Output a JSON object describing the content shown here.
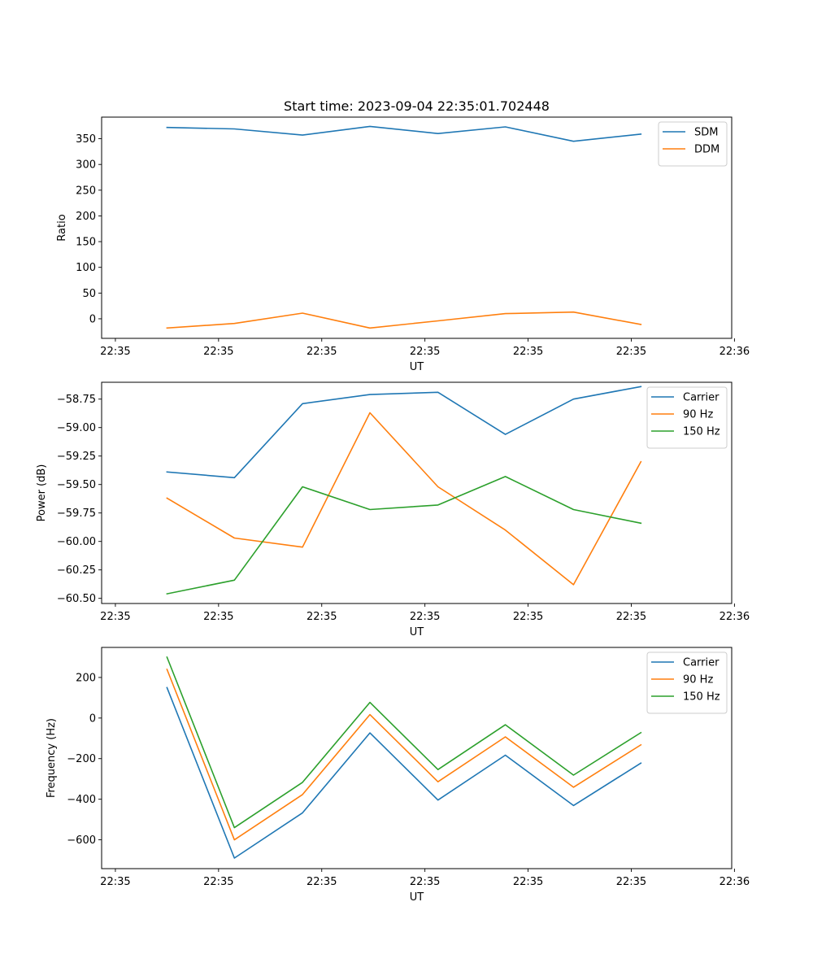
{
  "chart_data": [
    {
      "type": "line",
      "title": "Start time: 2023-09-04 22:35:01.702448",
      "xlabel": "UT",
      "ylabel": "Ratio",
      "xlim": [
        -0.2,
        8.96
      ],
      "ylim": [
        -38,
        392
      ],
      "xticks": [
        0,
        1.5,
        3,
        4.5,
        6,
        7.5,
        9
      ],
      "xtick_labels": [
        "22:35",
        "22:35",
        "22:35",
        "22:35",
        "22:35",
        "22:35",
        "22:36"
      ],
      "yticks": [
        0,
        50,
        100,
        150,
        200,
        250,
        300,
        350
      ],
      "ytick_labels": [
        "0",
        "50",
        "100",
        "150",
        "200",
        "250",
        "300",
        "350"
      ],
      "legend_position": "top-right",
      "x": [
        0.75,
        1.73,
        2.72,
        3.7,
        4.69,
        5.67,
        6.66,
        7.64
      ],
      "series": [
        {
          "name": "SDM",
          "color": "#1f77b4",
          "values": [
            372,
            369,
            357,
            374,
            360,
            373,
            345,
            359
          ]
        },
        {
          "name": "DDM",
          "color": "#ff7f0e",
          "values": [
            -18,
            -9,
            11,
            -18,
            -4,
            10,
            13,
            -11
          ]
        }
      ]
    },
    {
      "type": "line",
      "title": "",
      "xlabel": "UT",
      "ylabel": "Power (dB)",
      "xlim": [
        -0.2,
        8.96
      ],
      "ylim": [
        -60.545,
        -58.602
      ],
      "xticks": [
        0,
        1.5,
        3,
        4.5,
        6,
        7.5,
        9
      ],
      "xtick_labels": [
        "22:35",
        "22:35",
        "22:35",
        "22:35",
        "22:35",
        "22:35",
        "22:36"
      ],
      "yticks": [
        -60.5,
        -60.25,
        -60.0,
        -59.75,
        -59.5,
        -59.25,
        -59.0,
        -58.75
      ],
      "ytick_labels": [
        "−60.50",
        "−60.25",
        "−60.00",
        "−59.75",
        "−59.50",
        "−59.25",
        "−59.00",
        "−58.75"
      ],
      "legend_position": "top-right",
      "x": [
        0.75,
        1.73,
        2.72,
        3.7,
        4.69,
        5.67,
        6.66,
        7.64
      ],
      "series": [
        {
          "name": "Carrier",
          "color": "#1f77b4",
          "values": [
            -59.39,
            -59.44,
            -58.79,
            -58.71,
            -58.69,
            -59.06,
            -58.75,
            -58.64
          ]
        },
        {
          "name": "90 Hz",
          "color": "#ff7f0e",
          "values": [
            -59.62,
            -59.97,
            -60.05,
            -58.87,
            -59.52,
            -59.9,
            -60.38,
            -59.3
          ]
        },
        {
          "name": "150 Hz",
          "color": "#2ca02c",
          "values": [
            -60.46,
            -60.34,
            -59.52,
            -59.72,
            -59.68,
            -59.43,
            -59.72,
            -59.84
          ]
        }
      ]
    },
    {
      "type": "line",
      "title": "",
      "xlabel": "UT",
      "ylabel": "Frequency (Hz)",
      "xlim": [
        -0.2,
        8.96
      ],
      "ylim": [
        -742,
        348
      ],
      "xticks": [
        0,
        1.5,
        3,
        4.5,
        6,
        7.5,
        9
      ],
      "xtick_labels": [
        "22:35",
        "22:35",
        "22:35",
        "22:35",
        "22:35",
        "22:35",
        "22:36"
      ],
      "yticks": [
        -600,
        -400,
        -200,
        0,
        200
      ],
      "ytick_labels": [
        "−600",
        "−400",
        "−200",
        "0",
        "200"
      ],
      "legend_position": "top-right",
      "x": [
        0.75,
        1.73,
        2.72,
        3.7,
        4.69,
        5.67,
        6.66,
        7.64
      ],
      "series": [
        {
          "name": "Carrier",
          "color": "#1f77b4",
          "values": [
            150,
            -690,
            -467,
            -73,
            -404,
            -183,
            -431,
            -222
          ]
        },
        {
          "name": "90 Hz",
          "color": "#ff7f0e",
          "values": [
            240,
            -600,
            -377,
            17,
            -314,
            -93,
            -341,
            -132
          ]
        },
        {
          "name": "150 Hz",
          "color": "#2ca02c",
          "values": [
            300,
            -540,
            -317,
            77,
            -254,
            -33,
            -281,
            -72
          ]
        }
      ]
    }
  ]
}
